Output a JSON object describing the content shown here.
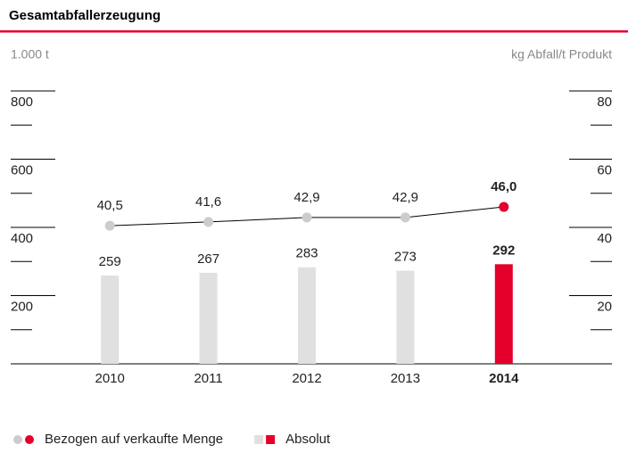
{
  "chart_data": {
    "type": "bar_line",
    "title": "Gesamtabfallerzeugung",
    "ylabel": "1.000 t",
    "y2label": "kg Abfall/t Produkt",
    "categories": [
      "2010",
      "2011",
      "2012",
      "2013",
      "2014"
    ],
    "highlight": "2014",
    "ylim": [
      0,
      800
    ],
    "yticks": [
      200,
      400,
      600,
      800
    ],
    "yminorticks": [
      100,
      300,
      500,
      700
    ],
    "y2lim": [
      0,
      80
    ],
    "y2ticks": [
      20,
      40,
      60,
      80
    ],
    "y2minorticks": [
      10,
      30,
      50,
      70
    ],
    "series": [
      {
        "name": "Bezogen auf verkaufte Menge",
        "type": "line",
        "axis": "y2",
        "color": "#cccccc",
        "highlight_color": "#e4002b",
        "line_color": "#000000",
        "values": [
          40.5,
          41.6,
          42.9,
          42.9,
          46.0
        ],
        "value_labels": [
          "40,5",
          "41,6",
          "42,9",
          "42,9",
          "46,0"
        ]
      },
      {
        "name": "Absolut",
        "type": "bar",
        "axis": "y",
        "color": "#e0e0e0",
        "highlight_color": "#e4002b",
        "values": [
          259,
          267,
          283,
          273,
          292
        ]
      }
    ]
  }
}
